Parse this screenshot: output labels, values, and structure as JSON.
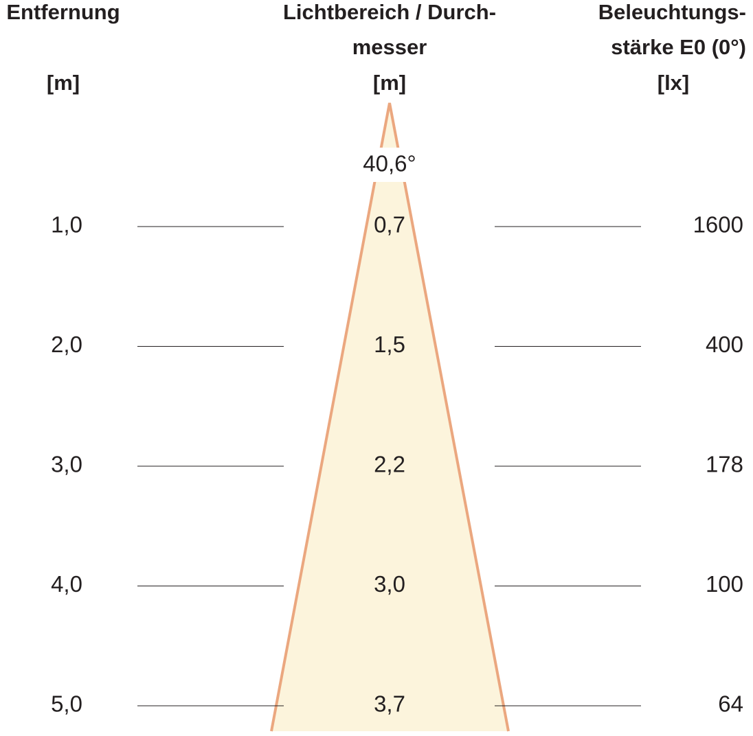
{
  "header": {
    "distance": {
      "title": "Entfernung",
      "unit": "[m]"
    },
    "diameter": {
      "title_lines": [
        "Lichtbereich / Durch-",
        "messer"
      ],
      "unit": "[m]"
    },
    "illuminance": {
      "title_lines": [
        "Beleuchtungs-",
        "stärke E0 (0°)"
      ],
      "unit": "[lx]"
    }
  },
  "beam_angle": "40,6°",
  "rows": [
    {
      "distance": "1,0",
      "diameter": "0,7",
      "illuminance": "1600"
    },
    {
      "distance": "2,0",
      "diameter": "1,5",
      "illuminance": "400"
    },
    {
      "distance": "3,0",
      "diameter": "2,2",
      "illuminance": "178"
    },
    {
      "distance": "4,0",
      "diameter": "3,0",
      "illuminance": "100"
    },
    {
      "distance": "5,0",
      "diameter": "3,7",
      "illuminance": "64"
    }
  ]
}
